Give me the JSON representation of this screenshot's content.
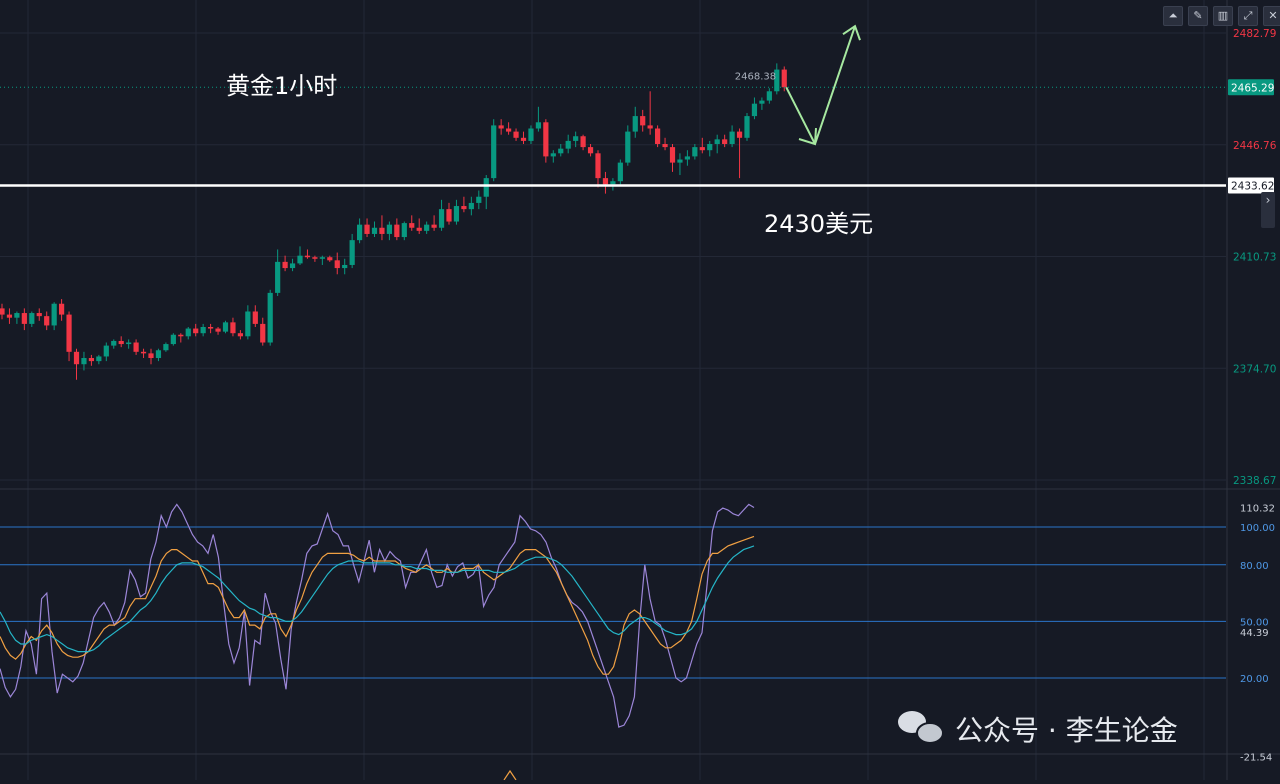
{
  "toolbar": [
    {
      "name": "indicator-icon",
      "glyph": "⏶"
    },
    {
      "name": "draw-icon",
      "glyph": "✎"
    },
    {
      "name": "candle-type-icon",
      "glyph": "▥"
    },
    {
      "name": "fullscreen-icon",
      "glyph": "⤢"
    },
    {
      "name": "close-icon",
      "glyph": "✕"
    }
  ],
  "scroll_glyph": "›",
  "chart_data": [
    {
      "type": "candlestick",
      "annotations": {
        "title": "黄金1小时",
        "level_label": "2430美元"
      },
      "y_ticks": [
        {
          "value": 2482.79,
          "label": "2482.79"
        },
        {
          "value": 2446.76,
          "label": "2446.76"
        },
        {
          "value": 2410.73,
          "label": "2410.73"
        },
        {
          "value": 2374.7,
          "label": "2374.70"
        },
        {
          "value": 2338.67,
          "label": "2338.67"
        }
      ],
      "ylim": [
        2338.67,
        2486.2
      ],
      "current_price": {
        "value": 2465.29,
        "label": "2465.29",
        "color": "#089981"
      },
      "horizontal_line": {
        "value": 2433.62,
        "label": "2433.62"
      },
      "high_label": {
        "value": 2468.38,
        "label": "2468.38"
      },
      "colors": {
        "up": "#089981",
        "down": "#f23645",
        "grid": "#232836",
        "axis_text": "#8d95a5",
        "line": "#ffffff",
        "arrow": "#a6e8a0"
      },
      "projection": [
        2465.29,
        2447.0,
        2485.0
      ],
      "candles": [
        [
          2394,
          2395.5,
          2390.5,
          2392
        ],
        [
          2392,
          2394,
          2389,
          2391
        ],
        [
          2391,
          2393,
          2389,
          2392.5
        ],
        [
          2392.5,
          2394,
          2387,
          2389
        ],
        [
          2389,
          2393,
          2388,
          2392.5
        ],
        [
          2392.5,
          2394,
          2390,
          2391.5
        ],
        [
          2391.5,
          2393,
          2387,
          2388.5
        ],
        [
          2388.5,
          2396,
          2387,
          2395.5
        ],
        [
          2395.5,
          2397,
          2390,
          2392
        ],
        [
          2392,
          2393,
          2377,
          2380
        ],
        [
          2380,
          2381,
          2371,
          2376
        ],
        [
          2376,
          2380,
          2374,
          2378
        ],
        [
          2378,
          2379,
          2375.5,
          2377
        ],
        [
          2377,
          2379,
          2376,
          2378.5
        ],
        [
          2378.5,
          2383,
          2377,
          2382
        ],
        [
          2382,
          2384,
          2381,
          2383.5
        ],
        [
          2383.5,
          2385,
          2381.5,
          2382.5
        ],
        [
          2382.5,
          2384,
          2381,
          2383
        ],
        [
          2383,
          2384,
          2379,
          2380
        ],
        [
          2380,
          2381,
          2378,
          2379.5
        ],
        [
          2379.5,
          2381,
          2376,
          2378
        ],
        [
          2378,
          2381,
          2377,
          2380.5
        ],
        [
          2380.5,
          2383,
          2380,
          2382.5
        ],
        [
          2382.5,
          2386,
          2382,
          2385.5
        ],
        [
          2385.5,
          2386,
          2383,
          2385
        ],
        [
          2385,
          2388,
          2384,
          2387.5
        ],
        [
          2387.5,
          2389,
          2385,
          2386
        ],
        [
          2386,
          2389,
          2385,
          2388
        ],
        [
          2388,
          2389,
          2386,
          2387.5
        ],
        [
          2387.5,
          2388,
          2385.5,
          2386.5
        ],
        [
          2386.5,
          2390,
          2386,
          2389.5
        ],
        [
          2389.5,
          2391,
          2385,
          2386
        ],
        [
          2386,
          2387,
          2384,
          2385
        ],
        [
          2385,
          2395,
          2384,
          2393
        ],
        [
          2393,
          2395,
          2388,
          2389
        ],
        [
          2389,
          2391,
          2382,
          2383
        ],
        [
          2383,
          2400,
          2382,
          2399
        ],
        [
          2399,
          2413,
          2398,
          2409
        ],
        [
          2409,
          2411,
          2406,
          2407
        ],
        [
          2407,
          2410,
          2406,
          2408.5
        ],
        [
          2408.5,
          2414,
          2408,
          2411
        ],
        [
          2411,
          2413,
          2410,
          2410.5
        ],
        [
          2410.5,
          2411,
          2409,
          2410
        ],
        [
          2410,
          2411,
          2408,
          2410.5
        ],
        [
          2410.5,
          2411,
          2409,
          2409.5
        ],
        [
          2409.5,
          2412,
          2405,
          2407
        ],
        [
          2407,
          2410,
          2405,
          2408
        ],
        [
          2408,
          2418,
          2407,
          2416
        ],
        [
          2416,
          2423,
          2415,
          2421
        ],
        [
          2421,
          2423,
          2417,
          2418
        ],
        [
          2418,
          2422,
          2417,
          2420
        ],
        [
          2420,
          2424,
          2416,
          2418
        ],
        [
          2418,
          2422,
          2416,
          2421
        ],
        [
          2421,
          2423,
          2416,
          2417
        ],
        [
          2417,
          2422,
          2416,
          2421.5
        ],
        [
          2421.5,
          2424,
          2419,
          2420
        ],
        [
          2420,
          2423,
          2418,
          2419
        ],
        [
          2419,
          2422,
          2418,
          2421
        ],
        [
          2421,
          2424,
          2419,
          2420
        ],
        [
          2420,
          2429,
          2419,
          2426
        ],
        [
          2426,
          2428,
          2421,
          2422
        ],
        [
          2422,
          2429,
          2421,
          2427
        ],
        [
          2427,
          2430,
          2425,
          2426
        ],
        [
          2426,
          2430,
          2424,
          2428
        ],
        [
          2428,
          2432,
          2426,
          2430
        ],
        [
          2430,
          2437,
          2426,
          2436
        ],
        [
          2436,
          2455,
          2435,
          2453
        ],
        [
          2453,
          2455,
          2450,
          2452
        ],
        [
          2452,
          2454,
          2450,
          2451
        ],
        [
          2451,
          2452,
          2448,
          2449
        ],
        [
          2449,
          2451,
          2447,
          2448
        ],
        [
          2448,
          2453,
          2447,
          2452
        ],
        [
          2452,
          2459,
          2451,
          2454
        ],
        [
          2454,
          2455,
          2441,
          2443
        ],
        [
          2443,
          2445,
          2441,
          2444
        ],
        [
          2444,
          2447,
          2443,
          2445.5
        ],
        [
          2445.5,
          2450,
          2444,
          2448
        ],
        [
          2448,
          2451,
          2446,
          2449.5
        ],
        [
          2449.5,
          2450,
          2445,
          2446
        ],
        [
          2446,
          2447,
          2443,
          2444
        ],
        [
          2444,
          2445,
          2433,
          2436
        ],
        [
          2436,
          2438,
          2431,
          2434
        ],
        [
          2434,
          2436,
          2432,
          2435
        ],
        [
          2435,
          2442,
          2434,
          2441
        ],
        [
          2441,
          2453,
          2440,
          2451
        ],
        [
          2451,
          2459,
          2449,
          2456
        ],
        [
          2456,
          2458,
          2451,
          2453
        ],
        [
          2453,
          2464,
          2450,
          2452
        ],
        [
          2452,
          2453,
          2446,
          2447
        ],
        [
          2447,
          2449,
          2445,
          2446
        ],
        [
          2446,
          2447,
          2438,
          2441
        ],
        [
          2441,
          2444,
          2437,
          2442
        ],
        [
          2442,
          2445,
          2440,
          2443
        ],
        [
          2443,
          2447,
          2442,
          2446
        ],
        [
          2446,
          2449,
          2444,
          2445
        ],
        [
          2445,
          2448,
          2443,
          2447
        ],
        [
          2447,
          2450,
          2444,
          2448.5
        ],
        [
          2448.5,
          2450,
          2446,
          2447
        ],
        [
          2447,
          2453,
          2446,
          2451
        ],
        [
          2451,
          2452,
          2436,
          2449
        ],
        [
          2449,
          2457,
          2448,
          2456
        ],
        [
          2456,
          2462,
          2455,
          2460
        ],
        [
          2460,
          2462,
          2458,
          2461
        ],
        [
          2461,
          2465,
          2460,
          2464
        ],
        [
          2464,
          2473,
          2463,
          2471
        ],
        [
          2471,
          2472,
          2464,
          2465.29
        ]
      ]
    },
    {
      "type": "line",
      "subtitle": "",
      "y_ticks": [
        {
          "value": 110.32,
          "label": "110.32"
        },
        {
          "value": 100,
          "label": "100.00"
        },
        {
          "value": 80,
          "label": "80.00"
        },
        {
          "value": 50,
          "label": "50.00"
        },
        {
          "value": 44.39,
          "label": "44.39"
        },
        {
          "value": 20,
          "label": "20.00"
        },
        {
          "value": -21.54,
          "label": "-21.54"
        }
      ],
      "level_lines": [
        100,
        80,
        50,
        20
      ],
      "ylim": [
        -21.54,
        122
      ],
      "series": [
        {
          "color": "#9c86d8",
          "values": [
            25,
            15,
            10,
            14,
            26,
            45,
            38,
            22,
            62,
            65,
            34,
            12,
            22,
            20,
            18,
            21,
            28,
            40,
            52,
            57,
            60,
            55,
            48,
            52,
            60,
            77,
            72,
            63,
            65,
            83,
            92,
            106,
            100,
            108,
            112,
            108,
            102,
            96,
            92,
            90,
            86,
            96,
            84,
            60,
            38,
            28,
            36,
            55,
            16,
            40,
            38,
            65,
            55,
            49,
            30,
            14,
            46,
            60,
            72,
            86,
            90,
            91,
            99,
            107,
            98,
            96,
            90,
            90,
            80,
            71,
            82,
            93,
            76,
            88,
            82,
            87,
            84,
            82,
            68,
            76,
            76,
            82,
            88,
            76,
            68,
            69,
            80,
            74,
            79,
            81,
            73,
            75,
            80,
            58,
            64,
            68,
            80,
            84,
            88,
            92,
            106,
            103,
            99,
            98,
            96,
            92,
            84,
            78,
            70,
            64,
            60,
            58,
            55,
            50,
            42,
            34,
            26,
            18,
            10,
            -6,
            -5,
            0,
            10,
            50,
            80,
            62,
            50,
            48,
            40,
            30,
            20,
            18,
            20,
            29,
            38,
            44,
            70,
            98,
            108,
            110,
            109,
            107,
            106,
            109,
            112,
            110.32
          ]
        },
        {
          "color": "#f0a043",
          "values": [
            42,
            36,
            32,
            30,
            33,
            38,
            42,
            40,
            45,
            48,
            44,
            38,
            34,
            32,
            31,
            31,
            32,
            34,
            38,
            42,
            46,
            48,
            48,
            50,
            52,
            58,
            62,
            62,
            62,
            68,
            74,
            82,
            86,
            88,
            88,
            86,
            84,
            82,
            82,
            76,
            70,
            70,
            68,
            62,
            56,
            52,
            52,
            56,
            48,
            48,
            46,
            52,
            54,
            54,
            46,
            42,
            48,
            56,
            62,
            70,
            76,
            80,
            84,
            86,
            86,
            86,
            86,
            86,
            85,
            83,
            82,
            84,
            82,
            82,
            82,
            82,
            82,
            80,
            78,
            77,
            76,
            78,
            80,
            78,
            76,
            76,
            78,
            76,
            76,
            78,
            78,
            78,
            80,
            76,
            74,
            72,
            74,
            76,
            78,
            82,
            86,
            88,
            88,
            88,
            86,
            84,
            80,
            76,
            70,
            64,
            58,
            52,
            46,
            40,
            32,
            26,
            22,
            22,
            26,
            36,
            48,
            54,
            56,
            54,
            50,
            46,
            42,
            38,
            36,
            36,
            38,
            40,
            44,
            50,
            62,
            75,
            82,
            86,
            86,
            88,
            90,
            91,
            92,
            93,
            94,
            95
          ]
        },
        {
          "color": "#25b5c7",
          "values": [
            55,
            50,
            44,
            40,
            38,
            38,
            40,
            41,
            42,
            43,
            42,
            40,
            38,
            36,
            35,
            34,
            34,
            34,
            35,
            37,
            40,
            42,
            44,
            46,
            48,
            50,
            53,
            56,
            58,
            61,
            65,
            70,
            74,
            77,
            80,
            81,
            81,
            81,
            80,
            79,
            77,
            75,
            73,
            70,
            67,
            64,
            61,
            59,
            57,
            56,
            54,
            53,
            52,
            52,
            51,
            50,
            50,
            52,
            55,
            59,
            63,
            67,
            71,
            75,
            78,
            80,
            81,
            82,
            82,
            82,
            81,
            81,
            81,
            81,
            81,
            81,
            80,
            80,
            79,
            79,
            78,
            78,
            78,
            77,
            77,
            77,
            76,
            76,
            76,
            77,
            77,
            77,
            77,
            77,
            77,
            76,
            76,
            76,
            77,
            78,
            80,
            82,
            83,
            84,
            84,
            84,
            83,
            82,
            80,
            77,
            74,
            70,
            66,
            62,
            58,
            54,
            50,
            46,
            44,
            43,
            45,
            48,
            50,
            52,
            52,
            51,
            49,
            47,
            45,
            44,
            43,
            43,
            44,
            46,
            50,
            56,
            62,
            68,
            73,
            77,
            81,
            84,
            86,
            88,
            89,
            90
          ]
        }
      ]
    }
  ],
  "watermark": {
    "text": "公众号 · 李生论金",
    "name": "wechat-watermark"
  }
}
